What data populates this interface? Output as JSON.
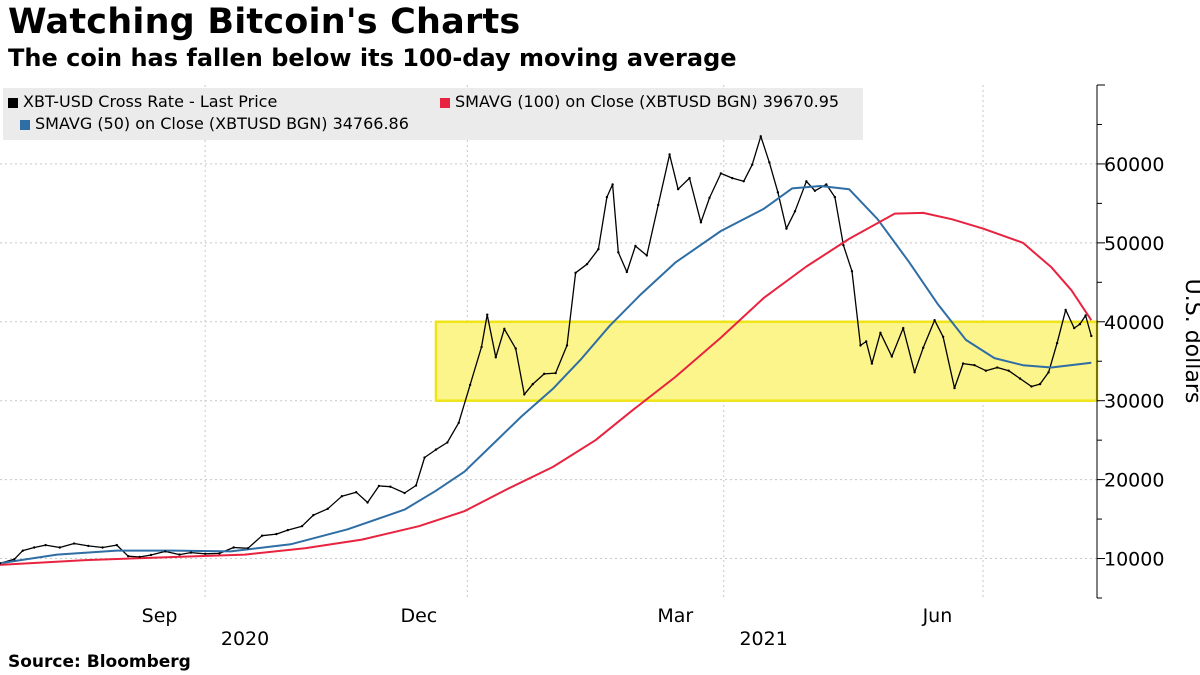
{
  "title": "Watching Bitcoin's Charts",
  "subtitle": "The coin has fallen below its 100-day moving average",
  "source": "Source: Bloomberg",
  "colors": {
    "price": "#000000",
    "sma50": "#2f6ea4",
    "sma100": "#e8233f",
    "band_fill": "#fbf58c",
    "band_stroke": "#efe418",
    "legend_bg": "#ebebeb",
    "grid": "#c8c8c8"
  },
  "chart_data": {
    "type": "line",
    "title": "Watching Bitcoin's Charts",
    "subtitle": "The coin has fallen below its 100-day moving average",
    "ylabel": "U.S. dollars",
    "xlabel": "",
    "ylim": [
      5000,
      70000
    ],
    "xlim": [
      "2020-07-21",
      "2021-08-10"
    ],
    "y_ticks": [
      10000,
      20000,
      30000,
      40000,
      50000,
      60000
    ],
    "y_tick_labels": [
      "10000",
      "20000",
      "30000",
      "40000",
      "50000",
      "60000"
    ],
    "x_ticks": [
      {
        "date": "2020-09-15",
        "label": "Sep"
      },
      {
        "date": "2020-12-15",
        "label": "Dec"
      },
      {
        "date": "2021-03-15",
        "label": "Mar"
      },
      {
        "date": "2021-06-15",
        "label": "Jun"
      }
    ],
    "x_year_labels": [
      {
        "date": "2020-10-15",
        "label": "2020"
      },
      {
        "date": "2021-04-15",
        "label": "2021"
      }
    ],
    "x_dividers": [
      "2020-10-01",
      "2021-01-01",
      "2021-04-01",
      "2021-07-01"
    ],
    "grid": true,
    "legend_position": "top-left",
    "annotations": [
      {
        "type": "band",
        "y0": 30000,
        "y1": 40000,
        "x0": "2020-12-21",
        "x1": "2021-08-10"
      }
    ],
    "series": [
      {
        "name": "XBT-USD Cross Rate - Last Price",
        "color": "#000000",
        "legend_value": "",
        "points": [
          [
            "2020-07-21",
            9400
          ],
          [
            "2020-07-26",
            9900
          ],
          [
            "2020-07-29",
            11000
          ],
          [
            "2020-08-02",
            11400
          ],
          [
            "2020-08-06",
            11700
          ],
          [
            "2020-08-11",
            11400
          ],
          [
            "2020-08-16",
            11900
          ],
          [
            "2020-08-21",
            11600
          ],
          [
            "2020-08-26",
            11400
          ],
          [
            "2020-08-31",
            11700
          ],
          [
            "2020-09-04",
            10300
          ],
          [
            "2020-09-08",
            10200
          ],
          [
            "2020-09-12",
            10450
          ],
          [
            "2020-09-17",
            10900
          ],
          [
            "2020-09-22",
            10500
          ],
          [
            "2020-09-26",
            10750
          ],
          [
            "2020-10-01",
            10600
          ],
          [
            "2020-10-06",
            10650
          ],
          [
            "2020-10-11",
            11400
          ],
          [
            "2020-10-16",
            11300
          ],
          [
            "2020-10-21",
            12900
          ],
          [
            "2020-10-26",
            13100
          ],
          [
            "2020-10-30",
            13600
          ],
          [
            "2020-11-04",
            14100
          ],
          [
            "2020-11-08",
            15500
          ],
          [
            "2020-11-13",
            16300
          ],
          [
            "2020-11-18",
            17900
          ],
          [
            "2020-11-23",
            18400
          ],
          [
            "2020-11-27",
            17100
          ],
          [
            "2020-12-01",
            19200
          ],
          [
            "2020-12-05",
            19100
          ],
          [
            "2020-12-10",
            18300
          ],
          [
            "2020-12-14",
            19250
          ],
          [
            "2020-12-17",
            22800
          ],
          [
            "2020-12-21",
            23800
          ],
          [
            "2020-12-25",
            24700
          ],
          [
            "2020-12-29",
            27200
          ],
          [
            "2021-01-02",
            32000
          ],
          [
            "2021-01-06",
            36800
          ],
          [
            "2021-01-08",
            40900
          ],
          [
            "2021-01-11",
            35500
          ],
          [
            "2021-01-14",
            39100
          ],
          [
            "2021-01-18",
            36600
          ],
          [
            "2021-01-21",
            30800
          ],
          [
            "2021-01-24",
            32100
          ],
          [
            "2021-01-28",
            33400
          ],
          [
            "2021-02-01",
            33500
          ],
          [
            "2021-02-05",
            37000
          ],
          [
            "2021-02-08",
            46200
          ],
          [
            "2021-02-12",
            47300
          ],
          [
            "2021-02-16",
            49200
          ],
          [
            "2021-02-19",
            55800
          ],
          [
            "2021-02-21",
            57400
          ],
          [
            "2021-02-23",
            48800
          ],
          [
            "2021-02-26",
            46300
          ],
          [
            "2021-03-01",
            49600
          ],
          [
            "2021-03-05",
            48400
          ],
          [
            "2021-03-09",
            54800
          ],
          [
            "2021-03-13",
            61200
          ],
          [
            "2021-03-16",
            56800
          ],
          [
            "2021-03-20",
            58200
          ],
          [
            "2021-03-24",
            52600
          ],
          [
            "2021-03-27",
            55700
          ],
          [
            "2021-03-31",
            58800
          ],
          [
            "2021-04-04",
            58200
          ],
          [
            "2021-04-08",
            57800
          ],
          [
            "2021-04-11",
            59900
          ],
          [
            "2021-04-14",
            63500
          ],
          [
            "2021-04-17",
            60200
          ],
          [
            "2021-04-20",
            56400
          ],
          [
            "2021-04-23",
            51800
          ],
          [
            "2021-04-26",
            54000
          ],
          [
            "2021-04-30",
            57800
          ],
          [
            "2021-05-03",
            56600
          ],
          [
            "2021-05-07",
            57400
          ],
          [
            "2021-05-10",
            55800
          ],
          [
            "2021-05-13",
            49700
          ],
          [
            "2021-05-16",
            46400
          ],
          [
            "2021-05-19",
            37000
          ],
          [
            "2021-05-21",
            37500
          ],
          [
            "2021-05-23",
            34700
          ],
          [
            "2021-05-26",
            38600
          ],
          [
            "2021-05-30",
            35600
          ],
          [
            "2021-06-03",
            39200
          ],
          [
            "2021-06-07",
            33600
          ],
          [
            "2021-06-10",
            36700
          ],
          [
            "2021-06-14",
            40200
          ],
          [
            "2021-06-17",
            38100
          ],
          [
            "2021-06-21",
            31600
          ],
          [
            "2021-06-24",
            34700
          ],
          [
            "2021-06-28",
            34500
          ],
          [
            "2021-07-02",
            33800
          ],
          [
            "2021-07-06",
            34200
          ],
          [
            "2021-07-10",
            33800
          ],
          [
            "2021-07-14",
            32800
          ],
          [
            "2021-07-18",
            31800
          ],
          [
            "2021-07-21",
            32100
          ],
          [
            "2021-07-24",
            33600
          ],
          [
            "2021-07-27",
            37300
          ],
          [
            "2021-07-30",
            41500
          ],
          [
            "2021-08-02",
            39200
          ],
          [
            "2021-08-04",
            39700
          ],
          [
            "2021-08-06",
            40800
          ],
          [
            "2021-08-08",
            38200
          ]
        ]
      },
      {
        "name": "SMAVG (50)  on Close (XBTUSD BGN)",
        "color": "#2f6ea4",
        "legend_value": "34766.86",
        "points": [
          [
            "2020-07-21",
            9400
          ],
          [
            "2020-08-10",
            10500
          ],
          [
            "2020-08-31",
            11000
          ],
          [
            "2020-09-20",
            11000
          ],
          [
            "2020-10-10",
            10900
          ],
          [
            "2020-10-31",
            11800
          ],
          [
            "2020-11-20",
            13700
          ],
          [
            "2020-12-10",
            16200
          ],
          [
            "2020-12-21",
            18600
          ],
          [
            "2020-12-31",
            21000
          ],
          [
            "2021-01-10",
            24500
          ],
          [
            "2021-01-20",
            28000
          ],
          [
            "2021-01-31",
            31500
          ],
          [
            "2021-02-10",
            35300
          ],
          [
            "2021-02-20",
            39500
          ],
          [
            "2021-03-03",
            43500
          ],
          [
            "2021-03-15",
            47500
          ],
          [
            "2021-03-31",
            51500
          ],
          [
            "2021-04-15",
            54300
          ],
          [
            "2021-04-25",
            56900
          ],
          [
            "2021-05-05",
            57200
          ],
          [
            "2021-05-15",
            56800
          ],
          [
            "2021-05-25",
            53000
          ],
          [
            "2021-06-05",
            47600
          ],
          [
            "2021-06-15",
            42300
          ],
          [
            "2021-06-25",
            37700
          ],
          [
            "2021-07-05",
            35400
          ],
          [
            "2021-07-15",
            34500
          ],
          [
            "2021-07-25",
            34200
          ],
          [
            "2021-08-08",
            34800
          ]
        ]
      },
      {
        "name": "SMAVG (100)  on Close (XBTUSD BGN)",
        "color": "#e8233f",
        "legend_value": "39670.95",
        "points": [
          [
            "2020-07-21",
            9200
          ],
          [
            "2020-08-20",
            9800
          ],
          [
            "2020-09-20",
            10200
          ],
          [
            "2020-10-15",
            10500
          ],
          [
            "2020-11-05",
            11300
          ],
          [
            "2020-11-25",
            12400
          ],
          [
            "2020-12-15",
            14100
          ],
          [
            "2020-12-31",
            16000
          ],
          [
            "2021-01-15",
            18800
          ],
          [
            "2021-01-31",
            21600
          ],
          [
            "2021-02-15",
            25000
          ],
          [
            "2021-02-28",
            28800
          ],
          [
            "2021-03-15",
            33000
          ],
          [
            "2021-03-31",
            38000
          ],
          [
            "2021-04-15",
            43000
          ],
          [
            "2021-04-30",
            47000
          ],
          [
            "2021-05-15",
            50500
          ],
          [
            "2021-05-31",
            53700
          ],
          [
            "2021-06-10",
            53800
          ],
          [
            "2021-06-20",
            53000
          ],
          [
            "2021-07-01",
            51800
          ],
          [
            "2021-07-15",
            50000
          ],
          [
            "2021-07-25",
            46900
          ],
          [
            "2021-08-01",
            44000
          ],
          [
            "2021-08-08",
            40200
          ]
        ]
      }
    ]
  }
}
